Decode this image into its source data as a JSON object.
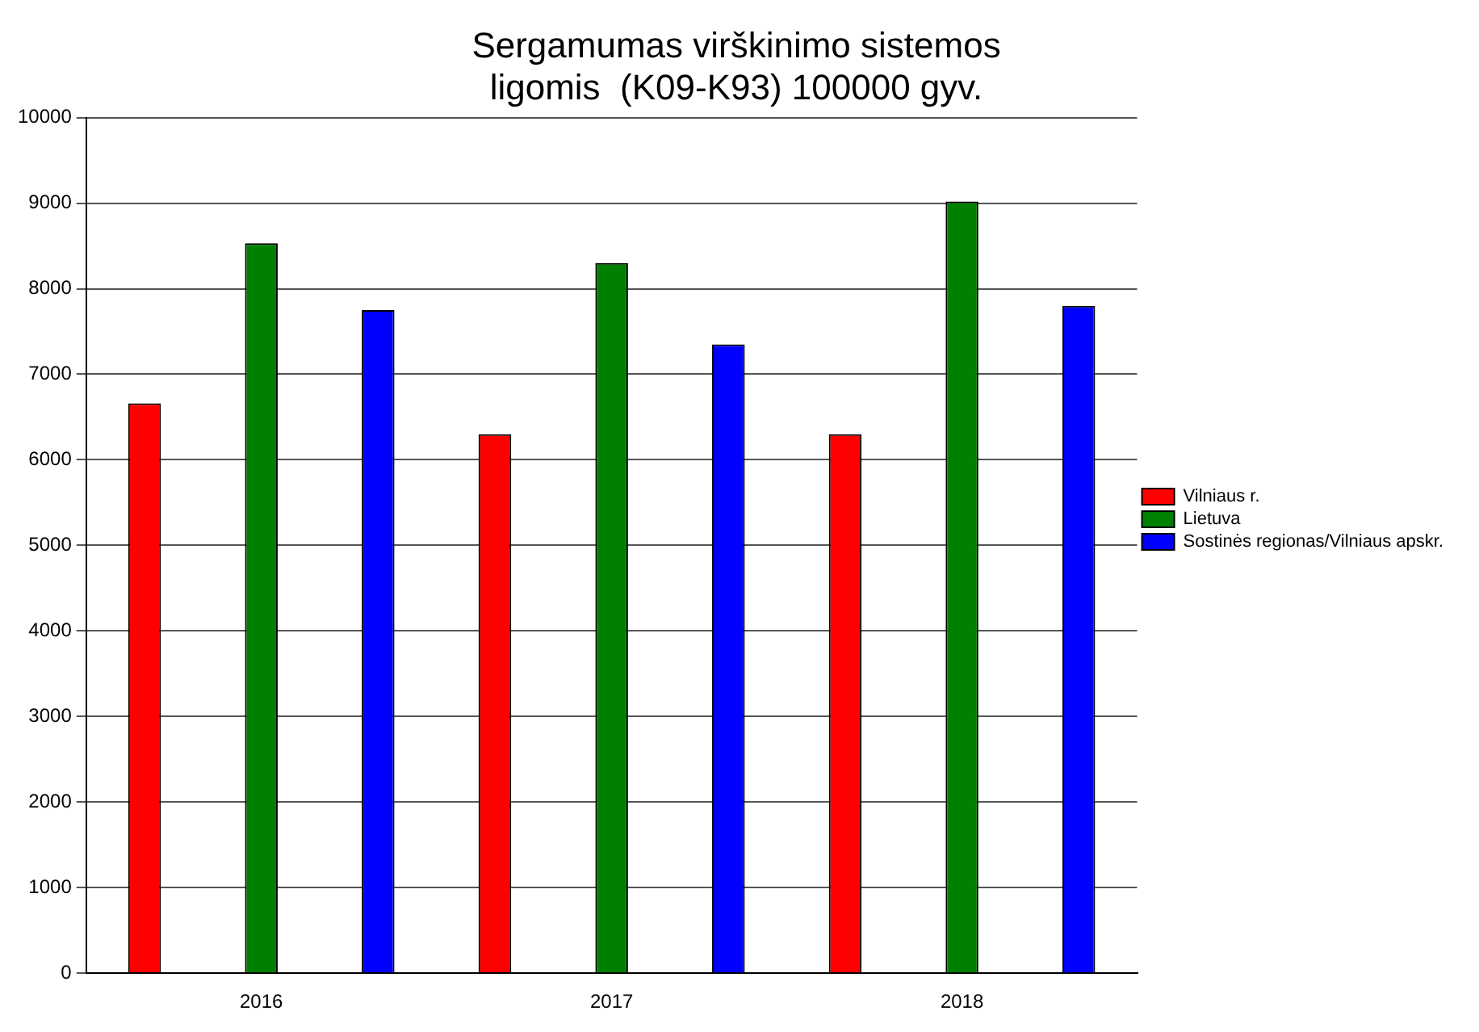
{
  "chart_data": {
    "type": "bar",
    "title": [
      "Sergamumas virškinimo sistemos",
      "ligomis  (K09-K93) 100000 gyv."
    ],
    "categories": [
      "2016",
      "2017",
      "2018"
    ],
    "series": [
      {
        "name": "Vilniaus r.",
        "color": "#ff0000",
        "values": [
          6660,
          6300,
          6300
        ]
      },
      {
        "name": "Lietuva",
        "color": "#008000",
        "values": [
          8530,
          8300,
          9020
        ]
      },
      {
        "name": "Sostinės regionas/Vilniaus apskr.",
        "color": "#0000ff",
        "values": [
          7750,
          7350,
          7800
        ]
      }
    ],
    "ylim": [
      0,
      10000
    ],
    "yticks": [
      0,
      1000,
      2000,
      3000,
      4000,
      5000,
      6000,
      7000,
      8000,
      9000,
      10000
    ],
    "grid": "y",
    "legend": "right"
  }
}
